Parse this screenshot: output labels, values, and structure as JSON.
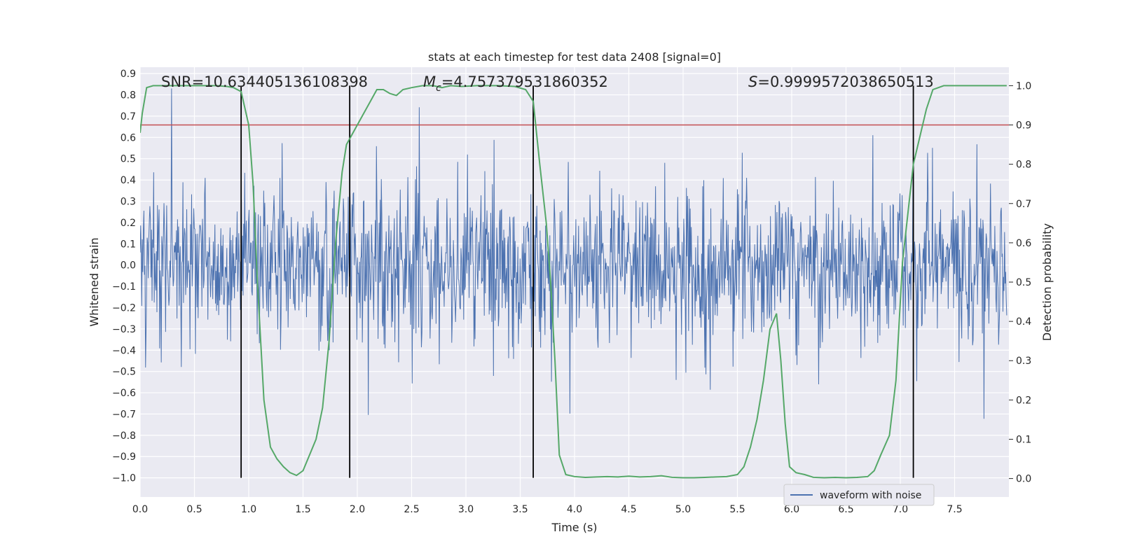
{
  "chart_data": {
    "type": "line",
    "title": "stats at each timestep for test data 2408 [signal=0]",
    "xlabel": "Time (s)",
    "ylabel_left": "Whitened strain",
    "ylabel_right": "Detection probability",
    "xlim": [
      0.0,
      8.0
    ],
    "ylim_left": [
      -1.09,
      0.93
    ],
    "ylim_right": [
      -0.047,
      1.047
    ],
    "x_ticks": [
      "0.0",
      "0.5",
      "1.0",
      "1.5",
      "2.0",
      "2.5",
      "3.0",
      "3.5",
      "4.0",
      "4.5",
      "5.0",
      "5.5",
      "6.0",
      "6.5",
      "7.0",
      "7.5"
    ],
    "y_ticks_left": [
      "0.9",
      "0.8",
      "0.7",
      "0.6",
      "0.5",
      "0.4",
      "0.3",
      "0.2",
      "0.1",
      "0.0",
      "−0.1",
      "−0.2",
      "−0.3",
      "−0.4",
      "−0.5",
      "−0.6",
      "−0.7",
      "−0.8",
      "−0.9",
      "−1.0"
    ],
    "y_ticks_right": [
      "1.0",
      "0.9",
      "0.8",
      "0.7",
      "0.6",
      "0.5",
      "0.4",
      "0.3",
      "0.2",
      "0.1",
      "0.0"
    ],
    "grid": true,
    "legend_position": "bottom-right",
    "annotations": {
      "snr": "SNR=10.634405136108398",
      "mc_symbol": "M",
      "mc_sub": "c",
      "mc_value": "=4.757379531860352",
      "s_symbol": "S",
      "s_value": "=0.9999572038650513"
    },
    "threshold": {
      "value": 0.9,
      "axis": "right",
      "color": "#c44e52"
    },
    "vertical_markers": {
      "x": [
        0.93,
        1.93,
        3.62,
        7.12
      ],
      "ymin": -1.0,
      "ymax_right": 1.0,
      "color": "#000000"
    },
    "series": [
      {
        "name": "waveform with noise",
        "axis": "left",
        "color": "#4c72b0",
        "kind": "noise",
        "t_start": 0.0,
        "t_end": 7.98,
        "n_samples": 1600,
        "seed": 2408,
        "typical_amplitude": 0.28,
        "max": 0.83,
        "min": -1.0
      },
      {
        "name": "",
        "axis": "right",
        "color": "#55a868",
        "x": [
          0.0,
          0.02,
          0.06,
          0.12,
          0.2,
          0.3,
          0.4,
          0.5,
          0.6,
          0.7,
          0.8,
          0.86,
          0.93,
          1.0,
          1.04,
          1.08,
          1.14,
          1.2,
          1.26,
          1.32,
          1.38,
          1.44,
          1.5,
          1.56,
          1.62,
          1.68,
          1.74,
          1.8,
          1.86,
          1.9,
          1.96,
          2.04,
          2.12,
          2.18,
          2.24,
          2.3,
          2.36,
          2.42,
          2.5,
          2.6,
          2.7,
          2.78,
          2.86,
          2.96,
          3.1,
          3.3,
          3.45,
          3.55,
          3.62,
          3.68,
          3.74,
          3.78,
          3.82,
          3.86,
          3.92,
          4.0,
          4.1,
          4.2,
          4.3,
          4.4,
          4.5,
          4.6,
          4.7,
          4.8,
          4.9,
          5.0,
          5.1,
          5.2,
          5.3,
          5.4,
          5.5,
          5.56,
          5.62,
          5.68,
          5.74,
          5.8,
          5.86,
          5.9,
          5.94,
          5.98,
          6.04,
          6.12,
          6.2,
          6.3,
          6.4,
          6.5,
          6.6,
          6.7,
          6.76,
          6.82,
          6.9,
          6.96,
          7.02,
          7.08,
          7.12,
          7.18,
          7.24,
          7.3,
          7.4,
          7.6,
          7.8,
          7.98
        ],
        "values": [
          0.88,
          0.93,
          0.995,
          1.0,
          1.0,
          1.0,
          1.0,
          1.0,
          1.0,
          1.0,
          0.998,
          0.995,
          0.985,
          0.9,
          0.75,
          0.5,
          0.2,
          0.08,
          0.05,
          0.03,
          0.015,
          0.008,
          0.02,
          0.06,
          0.1,
          0.18,
          0.35,
          0.6,
          0.78,
          0.85,
          0.88,
          0.92,
          0.96,
          0.99,
          0.99,
          0.98,
          0.975,
          0.99,
          0.995,
          1.0,
          1.0,
          0.995,
          1.0,
          0.998,
          1.0,
          1.0,
          0.998,
          0.99,
          0.96,
          0.8,
          0.65,
          0.5,
          0.3,
          0.06,
          0.01,
          0.005,
          0.003,
          0.004,
          0.005,
          0.004,
          0.006,
          0.004,
          0.005,
          0.007,
          0.003,
          0.002,
          0.002,
          0.003,
          0.004,
          0.005,
          0.01,
          0.03,
          0.08,
          0.15,
          0.25,
          0.38,
          0.42,
          0.3,
          0.14,
          0.03,
          0.015,
          0.01,
          0.003,
          0.002,
          0.003,
          0.002,
          0.003,
          0.005,
          0.02,
          0.06,
          0.11,
          0.25,
          0.55,
          0.7,
          0.8,
          0.87,
          0.94,
          0.99,
          1.0,
          1.0,
          1.0,
          1.0
        ]
      }
    ]
  }
}
